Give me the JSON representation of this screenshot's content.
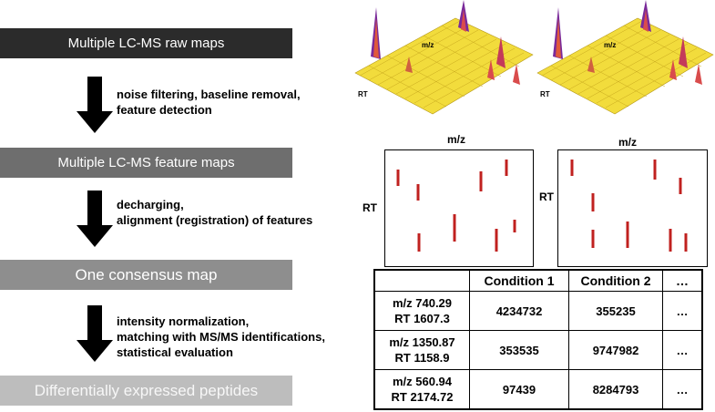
{
  "boxes": {
    "raw": "Multiple LC-MS raw maps",
    "feature": "Multiple LC-MS feature maps",
    "consensus": "One consensus map",
    "diff": "Differentially expressed peptides"
  },
  "steps": {
    "s1": [
      "noise filtering, baseline removal,",
      "feature detection"
    ],
    "s2": [
      "decharging,",
      "alignment (registration) of features"
    ],
    "s3": [
      "intensity normalization,",
      "matching with MS/MS identifications,",
      "statistical evaluation"
    ]
  },
  "raw_maps": {
    "mz_label": "m/z",
    "rt_label": "RT"
  },
  "feature_maps": {
    "mz_label": "m/z",
    "rt_label": "RT",
    "map1": [
      [
        437,
        186,
        18
      ],
      [
        459,
        202,
        18
      ],
      [
        528,
        188,
        22
      ],
      [
        556,
        175,
        18
      ],
      [
        499,
        235,
        30
      ],
      [
        565,
        241,
        14
      ],
      [
        460,
        256,
        20
      ],
      [
        545,
        251,
        25
      ]
    ],
    "map2": [
      [
        628,
        175,
        18
      ],
      [
        719,
        175,
        22
      ],
      [
        747,
        195,
        18
      ],
      [
        651,
        212,
        20
      ],
      [
        651,
        252,
        20
      ],
      [
        689,
        243,
        29
      ],
      [
        736,
        251,
        25
      ],
      [
        753,
        256,
        20
      ]
    ]
  },
  "table": {
    "headers": [
      "",
      "Condition 1",
      "Condition 2",
      "…"
    ],
    "rows": [
      {
        "id": [
          "m/z 740.29",
          "RT 1607.3"
        ],
        "c1": "4234732",
        "c2": "355235",
        "more": "…"
      },
      {
        "id": [
          "m/z 1350.87",
          "RT 1158.9"
        ],
        "c1": "353535",
        "c2": "9747982",
        "more": "…"
      },
      {
        "id": [
          "m/z 560.94",
          "RT 2174.72"
        ],
        "c1": "97439",
        "c2": "8284793",
        "more": "…"
      }
    ]
  },
  "colors": {
    "feature_mark": "#c0211f",
    "surface": "#f2dc3c"
  }
}
